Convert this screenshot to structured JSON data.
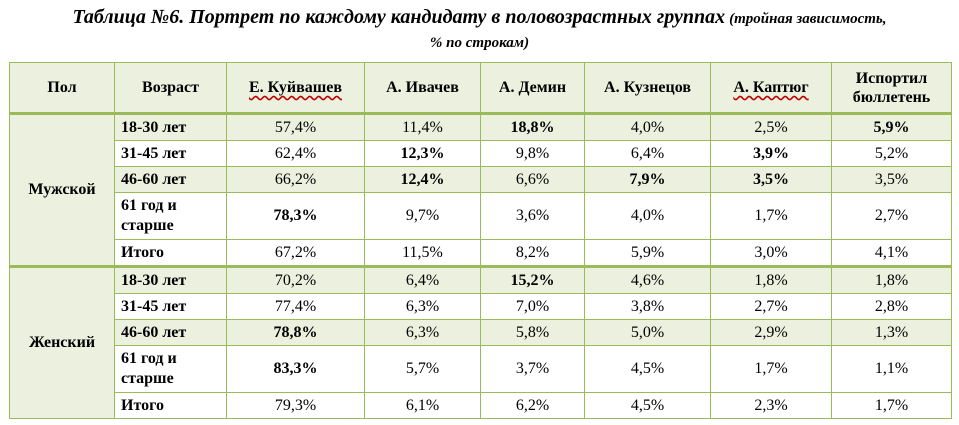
{
  "title": {
    "main": "Таблица №6. Портрет по каждому кандидату в половозрастных группах",
    "note_part1": "(тройная зависимость,",
    "note_part2": "% по строкам)"
  },
  "table": {
    "headers": [
      "Пол",
      "Возраст",
      "Е. Куйвашев",
      "А. Ивачев",
      "А. Демин",
      "А. Кузнецов",
      "А. Каптюг",
      "Испортил бюллетень"
    ],
    "groups": [
      {
        "gender": "Мужской",
        "rows": [
          {
            "age": "18-30 лет",
            "values": [
              "57,4%",
              "11,4%",
              "18,8%",
              "4,0%",
              "2,5%",
              "5,9%"
            ],
            "bold": [
              false,
              false,
              true,
              false,
              false,
              true
            ]
          },
          {
            "age": "31-45 лет",
            "values": [
              "62,4%",
              "12,3%",
              "9,8%",
              "6,4%",
              "3,9%",
              "5,2%"
            ],
            "bold": [
              false,
              true,
              false,
              false,
              true,
              false
            ]
          },
          {
            "age": "46-60 лет",
            "values": [
              "66,2%",
              "12,4%",
              "6,6%",
              "7,9%",
              "3,5%",
              "3,5%"
            ],
            "bold": [
              false,
              true,
              false,
              true,
              true,
              false
            ]
          },
          {
            "age": "61 год и старше",
            "values": [
              "78,3%",
              "9,7%",
              "3,6%",
              "4,0%",
              "1,7%",
              "2,7%"
            ],
            "bold": [
              true,
              false,
              false,
              false,
              false,
              false
            ]
          },
          {
            "age": "Итого",
            "values": [
              "67,2%",
              "11,5%",
              "8,2%",
              "5,9%",
              "3,0%",
              "4,1%"
            ],
            "bold": [
              false,
              false,
              false,
              false,
              false,
              false
            ]
          }
        ]
      },
      {
        "gender": "Женский",
        "rows": [
          {
            "age": "18-30 лет",
            "values": [
              "70,2%",
              "6,4%",
              "15,2%",
              "4,6%",
              "1,8%",
              "1,8%"
            ],
            "bold": [
              false,
              false,
              true,
              false,
              false,
              false
            ]
          },
          {
            "age": "31-45 лет",
            "values": [
              "77,4%",
              "6,3%",
              "7,0%",
              "3,8%",
              "2,7%",
              "2,8%"
            ],
            "bold": [
              false,
              false,
              false,
              false,
              false,
              false
            ]
          },
          {
            "age": "46-60 лет",
            "values": [
              "78,8%",
              "6,3%",
              "5,8%",
              "5,0%",
              "2,9%",
              "1,3%"
            ],
            "bold": [
              true,
              false,
              false,
              false,
              false,
              false
            ]
          },
          {
            "age": "61 год и старше",
            "values": [
              "83,3%",
              "5,7%",
              "3,7%",
              "4,5%",
              "1,7%",
              "1,1%"
            ],
            "bold": [
              true,
              false,
              false,
              false,
              false,
              false
            ]
          },
          {
            "age": "Итого",
            "values": [
              "79,3%",
              "6,1%",
              "6,2%",
              "4,5%",
              "2,3%",
              "1,7%"
            ],
            "bold": [
              false,
              false,
              false,
              false,
              false,
              false
            ]
          }
        ]
      }
    ]
  },
  "colors": {
    "border": "#9bbb59",
    "shade": "#ebf1de",
    "spellcheck_underline": "#c00000"
  }
}
